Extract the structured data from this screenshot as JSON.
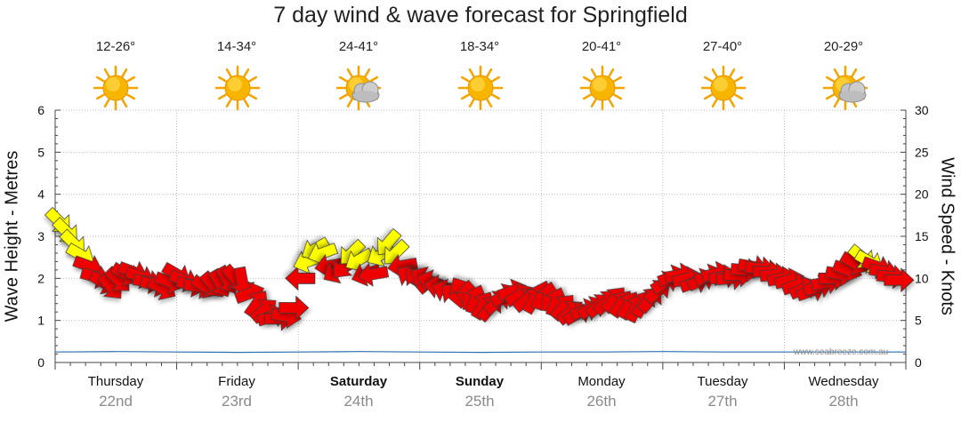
{
  "chart_data": {
    "type": "line",
    "title": "7 day wind & wave forecast for Springfield",
    "credit": "www.seabreeze.com.au",
    "y_left": {
      "label": "Wave Height - Metres",
      "range": [
        0,
        6
      ],
      "ticks": [
        "0",
        "1",
        "2",
        "3",
        "4",
        "5",
        "6"
      ]
    },
    "y_right": {
      "label": "Wind Speed - Knots",
      "range": [
        0,
        30
      ],
      "ticks": [
        "0",
        "5",
        "10",
        "15",
        "20",
        "25",
        "30"
      ]
    },
    "grid": "dotted",
    "days": [
      {
        "name": "Thursday",
        "date": "22nd",
        "temp": "12-26°",
        "weather": "sun-icon",
        "bold": false
      },
      {
        "name": "Friday",
        "date": "23rd",
        "temp": "14-34°",
        "weather": "sun-icon",
        "bold": false
      },
      {
        "name": "Saturday",
        "date": "24th",
        "temp": "24-41°",
        "weather": "sun-cloud-icon",
        "bold": true
      },
      {
        "name": "Sunday",
        "date": "25th",
        "temp": "18-34°",
        "weather": "sun-icon",
        "bold": true
      },
      {
        "name": "Monday",
        "date": "26th",
        "temp": "20-41°",
        "weather": "sun-icon",
        "bold": false
      },
      {
        "name": "Tuesday",
        "date": "27th",
        "temp": "27-40°",
        "weather": "sun-icon",
        "bold": false
      },
      {
        "name": "Wednesday",
        "date": "28th",
        "temp": "20-29°",
        "weather": "sun-cloud-icon",
        "bold": false
      }
    ],
    "series": [
      {
        "name": "Wind Speed",
        "unit": "knots",
        "x_unit": "days from Thursday 00:00",
        "x": [
          0.03,
          0.09,
          0.15,
          0.21,
          0.27,
          0.33,
          0.4,
          0.46,
          0.52,
          0.58,
          0.64,
          0.7,
          0.76,
          0.82,
          0.88,
          0.94,
          1.0,
          1.06,
          1.12,
          1.18,
          1.24,
          1.3,
          1.36,
          1.42,
          1.48,
          1.54,
          1.6,
          1.66,
          1.72,
          1.78,
          1.84,
          1.9,
          1.96,
          2.02,
          2.08,
          2.14,
          2.2,
          2.26,
          2.32,
          2.38,
          2.44,
          2.5,
          2.56,
          2.62,
          2.68,
          2.74,
          2.8,
          2.86,
          2.92,
          2.98,
          3.04,
          3.1,
          3.16,
          3.22,
          3.28,
          3.34,
          3.4,
          3.46,
          3.52,
          3.58,
          3.64,
          3.7,
          3.76,
          3.82,
          3.88,
          3.94,
          4.0,
          4.06,
          4.12,
          4.18,
          4.24,
          4.3,
          4.36,
          4.42,
          4.48,
          4.54,
          4.6,
          4.66,
          4.72,
          4.78,
          4.84,
          4.9,
          4.96,
          5.02,
          5.08,
          5.14,
          5.2,
          5.26,
          5.32,
          5.38,
          5.44,
          5.5,
          5.56,
          5.62,
          5.68,
          5.74,
          5.8,
          5.86,
          5.92,
          5.98,
          6.04,
          6.1,
          6.16,
          6.22,
          6.28,
          6.34,
          6.4,
          6.46,
          6.52,
          6.58,
          6.64,
          6.7,
          6.76,
          6.82,
          6.88,
          6.94
        ],
        "values": [
          16.8,
          15.6,
          14.2,
          12.8,
          11.5,
          10.2,
          9.5,
          9.0,
          9.8,
          10.5,
          10.8,
          10.2,
          9.6,
          9.2,
          8.8,
          9.6,
          10.5,
          9.8,
          9.2,
          9.0,
          9.0,
          9.2,
          9.4,
          9.8,
          10.0,
          9.6,
          8.2,
          7.0,
          6.2,
          5.5,
          5.2,
          5.5,
          6.5,
          10.0,
          12.0,
          13.5,
          13.0,
          11.5,
          10.8,
          11.5,
          13.0,
          12.2,
          10.5,
          10.5,
          12.8,
          14.2,
          13.0,
          11.5,
          10.2,
          9.8,
          10.0,
          9.6,
          9.0,
          8.5,
          8.0,
          8.5,
          8.0,
          7.5,
          6.8,
          6.5,
          7.2,
          8.0,
          8.5,
          8.0,
          7.5,
          7.5,
          8.0,
          7.8,
          7.2,
          6.6,
          6.0,
          5.8,
          6.2,
          6.5,
          6.8,
          7.2,
          7.5,
          7.0,
          6.8,
          6.5,
          7.0,
          7.5,
          8.5,
          9.5,
          10.2,
          10.4,
          10.0,
          9.5,
          9.8,
          10.3,
          10.6,
          10.2,
          10.0,
          10.4,
          11.0,
          11.4,
          11.2,
          10.8,
          10.4,
          10.0,
          9.8,
          9.2,
          8.8,
          8.5,
          9.0,
          9.5,
          10.0,
          10.5,
          11.0,
          11.8,
          12.5,
          12.0,
          11.4,
          10.8,
          10.2,
          9.8
        ],
        "direction_deg": [
          315,
          315,
          315,
          300,
          290,
          285,
          300,
          320,
          315,
          300,
          290,
          290,
          280,
          285,
          300,
          290,
          300,
          290,
          285,
          280,
          300,
          320,
          330,
          330,
          320,
          350,
          250,
          215,
          230,
          250,
          270,
          280,
          270,
          90,
          70,
          60,
          70,
          80,
          60,
          40,
          45,
          60,
          70,
          80,
          60,
          40,
          45,
          80,
          120,
          140,
          120,
          110,
          100,
          110,
          130,
          150,
          180,
          200,
          210,
          220,
          230,
          240,
          250,
          240,
          230,
          210,
          200,
          190,
          200,
          220,
          230,
          240,
          250,
          240,
          230,
          225,
          220,
          215,
          210,
          205,
          210,
          220,
          230,
          240,
          250,
          260,
          255,
          250,
          245,
          250,
          255,
          260,
          265,
          270,
          275,
          280,
          275,
          270,
          265,
          260,
          255,
          250,
          245,
          250,
          255,
          260,
          270,
          280,
          290,
          300,
          310,
          300,
          290,
          280,
          275,
          270
        ]
      },
      {
        "name": "Wave Height",
        "unit": "m",
        "x_unit": "days from Thursday 00:00",
        "x": [
          0.0,
          0.5,
          1.0,
          1.5,
          2.0,
          2.5,
          3.0,
          3.5,
          4.0,
          4.5,
          5.0,
          5.5,
          6.0,
          6.5,
          7.0
        ],
        "values": [
          0.25,
          0.26,
          0.25,
          0.24,
          0.25,
          0.26,
          0.25,
          0.24,
          0.25,
          0.25,
          0.26,
          0.25,
          0.25,
          0.25,
          0.25
        ]
      }
    ],
    "speed_colors": {
      "light": "#ffff00",
      "strong": "#ee0000"
    },
    "speed_threshold_knots": 12
  }
}
